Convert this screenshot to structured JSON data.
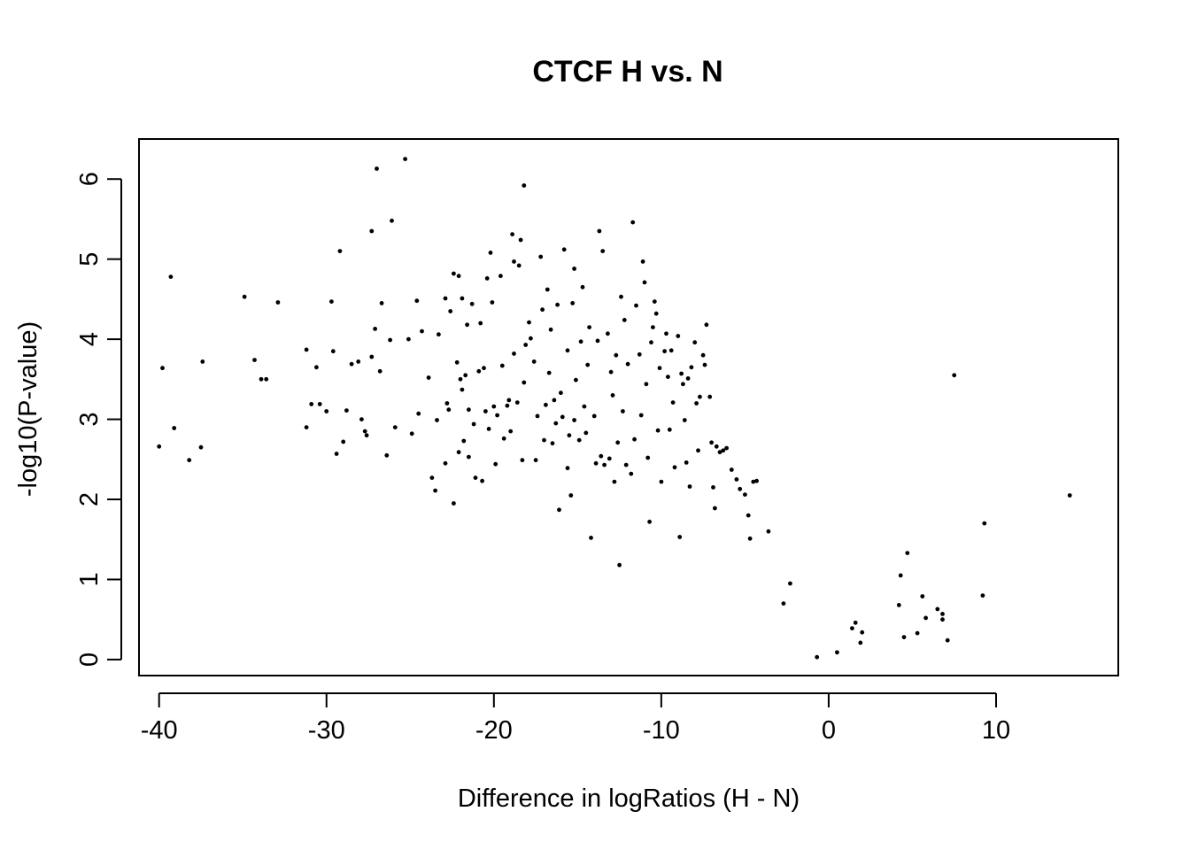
{
  "chart_data": {
    "type": "scatter",
    "title": "CTCF H vs. N",
    "xlabel": "Difference in logRatios (H - N)",
    "ylabel": "-log10(P-value)",
    "xlim": [
      -41.2,
      17.3
    ],
    "ylim": [
      -0.2,
      6.5
    ],
    "xticks": [
      -40,
      -30,
      -20,
      -10,
      0,
      10
    ],
    "yticks": [
      0,
      1,
      2,
      3,
      4,
      5,
      6
    ],
    "xtick_labels": [
      "-40",
      "-30",
      "-20",
      "-10",
      "0",
      "10"
    ],
    "ytick_labels": [
      "0",
      "1",
      "2",
      "3",
      "4",
      "5",
      "6"
    ],
    "grid": false,
    "legend": "none",
    "point_color": "#000000",
    "points": [
      [
        -40.0,
        2.66
      ],
      [
        -39.8,
        3.64
      ],
      [
        -39.3,
        4.78
      ],
      [
        -39.1,
        2.89
      ],
      [
        -38.2,
        2.49
      ],
      [
        -37.5,
        2.65
      ],
      [
        -37.4,
        3.72
      ],
      [
        -34.9,
        4.53
      ],
      [
        -34.3,
        3.74
      ],
      [
        -33.9,
        3.5
      ],
      [
        -33.6,
        3.5
      ],
      [
        -32.9,
        4.46
      ],
      [
        -31.2,
        3.87
      ],
      [
        -31.2,
        2.9
      ],
      [
        -30.9,
        3.19
      ],
      [
        -30.6,
        3.65
      ],
      [
        -30.4,
        3.19
      ],
      [
        -30.0,
        3.1
      ],
      [
        -29.7,
        4.47
      ],
      [
        -29.6,
        3.85
      ],
      [
        -29.4,
        2.57
      ],
      [
        -29.2,
        5.1
      ],
      [
        -29.0,
        2.72
      ],
      [
        -28.8,
        3.11
      ],
      [
        -28.5,
        3.69
      ],
      [
        -28.1,
        3.72
      ],
      [
        -27.9,
        3.0
      ],
      [
        -27.7,
        2.85
      ],
      [
        -27.6,
        2.8
      ],
      [
        -27.3,
        3.78
      ],
      [
        -27.3,
        5.35
      ],
      [
        -27.1,
        4.13
      ],
      [
        -27.0,
        6.13
      ],
      [
        -26.8,
        3.6
      ],
      [
        -26.7,
        4.45
      ],
      [
        -26.4,
        2.55
      ],
      [
        -26.2,
        3.99
      ],
      [
        -26.1,
        5.48
      ],
      [
        -25.9,
        2.9
      ],
      [
        -25.3,
        6.25
      ],
      [
        -25.1,
        4.0
      ],
      [
        -24.9,
        2.82
      ],
      [
        -24.6,
        4.48
      ],
      [
        -24.5,
        3.07
      ],
      [
        -24.3,
        4.1
      ],
      [
        -23.9,
        3.52
      ],
      [
        -23.7,
        2.27
      ],
      [
        -23.5,
        2.11
      ],
      [
        -23.4,
        2.99
      ],
      [
        -23.3,
        4.06
      ],
      [
        -22.9,
        2.45
      ],
      [
        -22.9,
        4.51
      ],
      [
        -22.8,
        3.2
      ],
      [
        -22.7,
        3.12
      ],
      [
        -22.6,
        4.35
      ],
      [
        -22.4,
        1.95
      ],
      [
        -22.4,
        4.82
      ],
      [
        -22.2,
        3.71
      ],
      [
        -22.1,
        4.79
      ],
      [
        -22.1,
        2.59
      ],
      [
        -22.0,
        3.5
      ],
      [
        -21.9,
        4.51
      ],
      [
        -21.9,
        3.37
      ],
      [
        -21.8,
        2.73
      ],
      [
        -21.7,
        3.55
      ],
      [
        -21.6,
        4.18
      ],
      [
        -21.5,
        2.53
      ],
      [
        -21.5,
        3.12
      ],
      [
        -21.3,
        4.44
      ],
      [
        -21.2,
        2.94
      ],
      [
        -21.1,
        2.27
      ],
      [
        -20.9,
        3.6
      ],
      [
        -20.8,
        4.2
      ],
      [
        -20.7,
        2.23
      ],
      [
        -20.6,
        3.64
      ],
      [
        -20.5,
        3.1
      ],
      [
        -20.4,
        4.76
      ],
      [
        -20.3,
        2.88
      ],
      [
        -20.2,
        5.08
      ],
      [
        -20.1,
        4.46
      ],
      [
        -20.0,
        3.16
      ],
      [
        -19.9,
        2.44
      ],
      [
        -19.8,
        3.05
      ],
      [
        -19.6,
        4.79
      ],
      [
        -19.5,
        3.67
      ],
      [
        -19.4,
        2.76
      ],
      [
        -19.2,
        3.17
      ],
      [
        -19.1,
        3.24
      ],
      [
        -19.0,
        2.85
      ],
      [
        -18.9,
        5.31
      ],
      [
        -18.8,
        3.82
      ],
      [
        -18.8,
        4.97
      ],
      [
        -18.6,
        3.21
      ],
      [
        -18.5,
        4.92
      ],
      [
        -18.4,
        5.24
      ],
      [
        -18.3,
        2.49
      ],
      [
        -18.2,
        3.46
      ],
      [
        -18.2,
        5.92
      ],
      [
        -18.1,
        3.93
      ],
      [
        -17.9,
        4.21
      ],
      [
        -17.8,
        4.01
      ],
      [
        -17.6,
        3.72
      ],
      [
        -17.5,
        2.49
      ],
      [
        -17.4,
        3.04
      ],
      [
        -17.2,
        5.03
      ],
      [
        -17.1,
        4.37
      ],
      [
        -17.0,
        2.74
      ],
      [
        -16.9,
        3.18
      ],
      [
        -16.8,
        4.62
      ],
      [
        -16.7,
        3.58
      ],
      [
        -16.6,
        4.12
      ],
      [
        -16.5,
        2.7
      ],
      [
        -16.4,
        3.24
      ],
      [
        -16.3,
        2.95
      ],
      [
        -16.2,
        4.43
      ],
      [
        -16.1,
        1.87
      ],
      [
        -16.0,
        3.33
      ],
      [
        -15.9,
        3.03
      ],
      [
        -15.8,
        5.12
      ],
      [
        -15.6,
        2.39
      ],
      [
        -15.6,
        3.86
      ],
      [
        -15.5,
        2.8
      ],
      [
        -15.4,
        2.05
      ],
      [
        -15.3,
        4.45
      ],
      [
        -15.2,
        2.99
      ],
      [
        -15.2,
        4.88
      ],
      [
        -15.1,
        3.49
      ],
      [
        -14.9,
        2.74
      ],
      [
        -14.8,
        3.97
      ],
      [
        -14.7,
        4.65
      ],
      [
        -14.6,
        3.16
      ],
      [
        -14.5,
        2.83
      ],
      [
        -14.4,
        3.68
      ],
      [
        -14.3,
        4.15
      ],
      [
        -14.2,
        1.52
      ],
      [
        -14.0,
        3.04
      ],
      [
        -13.9,
        2.45
      ],
      [
        -13.8,
        3.98
      ],
      [
        -13.7,
        5.35
      ],
      [
        -13.6,
        2.54
      ],
      [
        -13.5,
        5.1
      ],
      [
        -13.4,
        2.43
      ],
      [
        -13.2,
        4.07
      ],
      [
        -13.1,
        2.51
      ],
      [
        -13.0,
        3.59
      ],
      [
        -12.9,
        3.3
      ],
      [
        -12.8,
        2.22
      ],
      [
        -12.7,
        3.8
      ],
      [
        -12.6,
        2.71
      ],
      [
        -12.5,
        1.18
      ],
      [
        -12.4,
        4.53
      ],
      [
        -12.3,
        3.1
      ],
      [
        -12.2,
        4.24
      ],
      [
        -12.1,
        2.43
      ],
      [
        -12.0,
        3.69
      ],
      [
        -11.8,
        2.32
      ],
      [
        -11.7,
        5.46
      ],
      [
        -11.6,
        2.75
      ],
      [
        -11.5,
        4.42
      ],
      [
        -11.3,
        3.81
      ],
      [
        -11.2,
        3.05
      ],
      [
        -11.1,
        4.97
      ],
      [
        -11.0,
        4.71
      ],
      [
        -10.9,
        3.44
      ],
      [
        -10.8,
        2.52
      ],
      [
        -10.7,
        1.72
      ],
      [
        -10.6,
        3.96
      ],
      [
        -10.5,
        4.15
      ],
      [
        -10.4,
        4.47
      ],
      [
        -10.3,
        4.32
      ],
      [
        -10.2,
        2.86
      ],
      [
        -10.1,
        3.64
      ],
      [
        -10.0,
        2.22
      ],
      [
        -9.8,
        3.85
      ],
      [
        -9.7,
        4.07
      ],
      [
        -9.6,
        3.53
      ],
      [
        -9.5,
        2.87
      ],
      [
        -9.4,
        3.86
      ],
      [
        -9.3,
        3.21
      ],
      [
        -9.2,
        2.4
      ],
      [
        -9.0,
        4.04
      ],
      [
        -8.9,
        1.53
      ],
      [
        -8.8,
        3.57
      ],
      [
        -8.7,
        3.44
      ],
      [
        -8.6,
        2.99
      ],
      [
        -8.5,
        2.46
      ],
      [
        -8.4,
        3.51
      ],
      [
        -8.3,
        2.16
      ],
      [
        -8.2,
        3.65
      ],
      [
        -8.0,
        3.96
      ],
      [
        -7.9,
        3.2
      ],
      [
        -7.8,
        2.61
      ],
      [
        -7.7,
        3.28
      ],
      [
        -7.5,
        3.8
      ],
      [
        -7.4,
        3.68
      ],
      [
        -7.3,
        4.18
      ],
      [
        -7.1,
        3.28
      ],
      [
        -7.0,
        2.71
      ],
      [
        -6.9,
        2.15
      ],
      [
        -6.8,
        1.89
      ],
      [
        -6.7,
        2.66
      ],
      [
        -6.5,
        2.59
      ],
      [
        -6.3,
        2.61
      ],
      [
        -6.1,
        2.64
      ],
      [
        -5.8,
        2.37
      ],
      [
        -5.5,
        2.25
      ],
      [
        -5.3,
        2.13
      ],
      [
        -5.0,
        2.06
      ],
      [
        -4.8,
        1.8
      ],
      [
        -4.7,
        1.51
      ],
      [
        -4.5,
        2.22
      ],
      [
        -4.3,
        2.23
      ],
      [
        -3.6,
        1.6
      ],
      [
        -2.7,
        0.7
      ],
      [
        -2.3,
        0.95
      ],
      [
        -0.7,
        0.03
      ],
      [
        0.5,
        0.09
      ],
      [
        1.4,
        0.39
      ],
      [
        1.6,
        0.46
      ],
      [
        1.9,
        0.21
      ],
      [
        2.0,
        0.34
      ],
      [
        4.2,
        0.68
      ],
      [
        4.3,
        1.05
      ],
      [
        4.5,
        0.28
      ],
      [
        4.7,
        1.33
      ],
      [
        5.3,
        0.33
      ],
      [
        5.6,
        0.79
      ],
      [
        5.8,
        0.52
      ],
      [
        6.5,
        0.63
      ],
      [
        6.8,
        0.5
      ],
      [
        6.8,
        0.57
      ],
      [
        7.1,
        0.24
      ],
      [
        7.5,
        3.55
      ],
      [
        9.2,
        0.8
      ],
      [
        9.3,
        1.7
      ],
      [
        14.4,
        2.05
      ]
    ]
  }
}
